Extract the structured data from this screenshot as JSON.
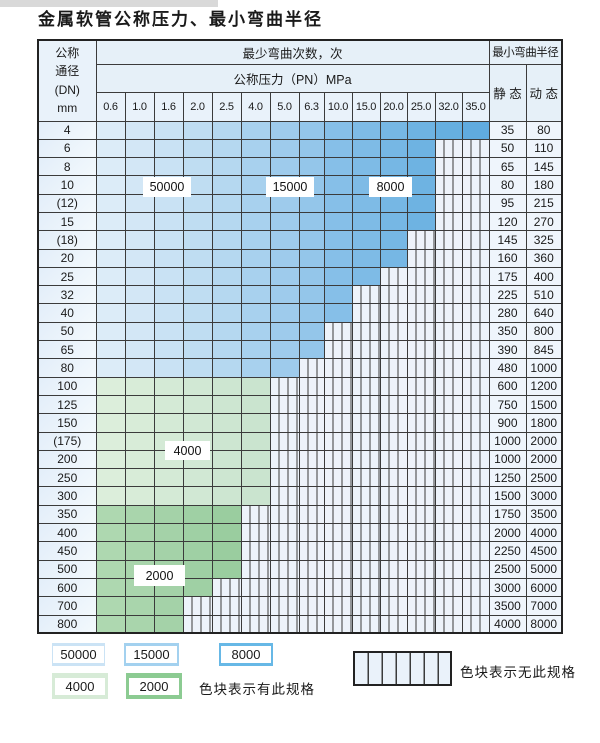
{
  "title": "金属软管公称压力、最小弯曲半径",
  "table": {
    "header": {
      "dn_label_lines": [
        "公称",
        "通径",
        "(DN)",
        "mm"
      ],
      "bend_cycles_label": "最少弯曲次数，次",
      "pressure_label": "公称压力（PN）MPa",
      "pressure_columns": [
        "0.6",
        "1.0",
        "1.6",
        "2.0",
        "2.5",
        "4.0",
        "5.0",
        "6.3",
        "10.0",
        "15.0",
        "20.0",
        "25.0",
        "32.0",
        "35.0"
      ],
      "radius_label": "最小弯曲半径",
      "static_label": "静 态",
      "dynamic_label": "动 态"
    },
    "rows": [
      {
        "dn": "4",
        "colored": 14,
        "zone": "blue",
        "static": "35",
        "dynamic": "80"
      },
      {
        "dn": "6",
        "colored": 12,
        "zone": "blue",
        "static": "50",
        "dynamic": "110"
      },
      {
        "dn": "8",
        "colored": 12,
        "zone": "blue",
        "static": "65",
        "dynamic": "145"
      },
      {
        "dn": "10",
        "colored": 12,
        "zone": "blue",
        "static": "80",
        "dynamic": "180"
      },
      {
        "dn": "(12)",
        "colored": 12,
        "zone": "blue",
        "static": "95",
        "dynamic": "215"
      },
      {
        "dn": "15",
        "colored": 12,
        "zone": "blue",
        "static": "120",
        "dynamic": "270"
      },
      {
        "dn": "(18)",
        "colored": 11,
        "zone": "blue",
        "static": "145",
        "dynamic": "325"
      },
      {
        "dn": "20",
        "colored": 11,
        "zone": "blue",
        "static": "160",
        "dynamic": "360"
      },
      {
        "dn": "25",
        "colored": 10,
        "zone": "blue",
        "static": "175",
        "dynamic": "400"
      },
      {
        "dn": "32",
        "colored": 9,
        "zone": "blue",
        "static": "225",
        "dynamic": "510"
      },
      {
        "dn": "40",
        "colored": 9,
        "zone": "blue",
        "static": "280",
        "dynamic": "640"
      },
      {
        "dn": "50",
        "colored": 8,
        "zone": "blue",
        "static": "350",
        "dynamic": "800"
      },
      {
        "dn": "65",
        "colored": 8,
        "zone": "blue",
        "static": "390",
        "dynamic": "845"
      },
      {
        "dn": "80",
        "colored": 7,
        "zone": "blue",
        "static": "480",
        "dynamic": "1000"
      },
      {
        "dn": "100",
        "colored": 6,
        "zone": "green4000",
        "static": "600",
        "dynamic": "1200"
      },
      {
        "dn": "125",
        "colored": 6,
        "zone": "green4000",
        "static": "750",
        "dynamic": "1500"
      },
      {
        "dn": "150",
        "colored": 6,
        "zone": "green4000",
        "static": "900",
        "dynamic": "1800"
      },
      {
        "dn": "(175)",
        "colored": 6,
        "zone": "green4000",
        "static": "1000",
        "dynamic": "2000"
      },
      {
        "dn": "200",
        "colored": 6,
        "zone": "green4000",
        "static": "1000",
        "dynamic": "2000"
      },
      {
        "dn": "250",
        "colored": 6,
        "zone": "green4000",
        "static": "1250",
        "dynamic": "2500"
      },
      {
        "dn": "300",
        "colored": 6,
        "zone": "green4000",
        "static": "1500",
        "dynamic": "3000"
      },
      {
        "dn": "350",
        "colored": 5,
        "zone": "green2000",
        "static": "1750",
        "dynamic": "3500"
      },
      {
        "dn": "400",
        "colored": 5,
        "zone": "green2000",
        "static": "2000",
        "dynamic": "4000"
      },
      {
        "dn": "450",
        "colored": 5,
        "zone": "green2000",
        "static": "2250",
        "dynamic": "4500"
      },
      {
        "dn": "500",
        "colored": 5,
        "zone": "green2000",
        "static": "2500",
        "dynamic": "5000"
      },
      {
        "dn": "600",
        "colored": 4,
        "zone": "green2000",
        "static": "3000",
        "dynamic": "6000"
      },
      {
        "dn": "700",
        "colored": 3,
        "zone": "green2000",
        "static": "3500",
        "dynamic": "7000"
      },
      {
        "dn": "800",
        "colored": 3,
        "zone": "green2000",
        "static": "4000",
        "dynamic": "8000"
      }
    ]
  },
  "zone_labels": [
    {
      "text": "50000"
    },
    {
      "text": "15000"
    },
    {
      "text": "8000"
    },
    {
      "text": "4000"
    },
    {
      "text": "2000"
    }
  ],
  "legend": {
    "chips": [
      {
        "label": "50000",
        "color": "#cbe3f5"
      },
      {
        "label": "15000",
        "color": "#a3d1ef"
      },
      {
        "label": "8000",
        "color": "#67b8e6"
      },
      {
        "label": "4000",
        "color": "#d7ebd7"
      },
      {
        "label": "2000",
        "color": "#8ccb92"
      }
    ],
    "has_spec_text": "色块表示有此规格",
    "no_spec_text": "色块表示无此规格"
  },
  "colors": {
    "grid_line": "#3b3b3b",
    "stripe_cell_bg": "#edf3fa",
    "palettes": {
      "blue": [
        "#dcecf8",
        "#d3e7f6",
        "#c9e2f4",
        "#bfddf2",
        "#b5d8f0",
        "#a8d1ee",
        "#9ecbec",
        "#94c6ea",
        "#86bfe8",
        "#7ebbe6",
        "#76b7e4",
        "#6eb3e2",
        "#66afe0",
        "#60abdf"
      ],
      "green4000": [
        "#dceedb",
        "#d8ecd8",
        "#d4ead6",
        "#d1e8d4",
        "#cde6d1",
        "#cae4cf"
      ],
      "green2000": [
        "#aed8b0",
        "#a9d5ac",
        "#a4d2a8",
        "#9fd0a4",
        "#9acd9f"
      ]
    }
  }
}
